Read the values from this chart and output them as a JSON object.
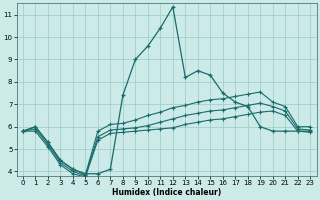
{
  "xlabel": "Humidex (Indice chaleur)",
  "bg_color": "#cceae8",
  "grid_color": "#99cccc",
  "line_color": "#1a6b6b",
  "xlim": [
    -0.5,
    23.5
  ],
  "ylim": [
    3.8,
    11.5
  ],
  "xticks": [
    0,
    1,
    2,
    3,
    4,
    5,
    6,
    7,
    8,
    9,
    10,
    11,
    12,
    13,
    14,
    15,
    16,
    17,
    18,
    19,
    20,
    21,
    22,
    23
  ],
  "yticks": [
    4,
    5,
    6,
    7,
    8,
    9,
    10,
    11
  ],
  "s1_x": [
    0,
    1,
    2,
    3,
    4,
    5,
    6,
    7,
    8,
    9,
    10,
    11,
    12,
    13,
    14,
    15,
    16,
    17,
    18,
    19,
    20,
    21,
    22,
    23
  ],
  "s1_y": [
    5.8,
    6.0,
    5.3,
    4.5,
    4.1,
    3.9,
    3.9,
    4.1,
    7.4,
    9.0,
    9.6,
    10.4,
    11.35,
    8.2,
    8.5,
    8.3,
    7.5,
    7.1,
    6.9,
    6.0,
    5.8,
    5.8,
    5.8,
    5.8
  ],
  "s2_x": [
    0,
    1,
    2,
    3,
    4,
    5,
    6,
    7,
    8,
    9,
    10,
    11,
    12,
    13,
    14,
    15,
    16,
    17,
    18,
    19,
    20,
    21,
    22,
    23
  ],
  "s2_y": [
    5.8,
    6.0,
    5.3,
    4.5,
    4.1,
    3.85,
    5.8,
    6.1,
    6.15,
    6.3,
    6.5,
    6.65,
    6.85,
    6.95,
    7.1,
    7.2,
    7.25,
    7.35,
    7.45,
    7.55,
    7.1,
    6.9,
    6.0,
    6.0
  ],
  "s3_x": [
    0,
    1,
    2,
    3,
    4,
    5,
    6,
    7,
    8,
    9,
    10,
    11,
    12,
    13,
    14,
    15,
    16,
    17,
    18,
    19,
    20,
    21,
    22,
    23
  ],
  "s3_y": [
    5.8,
    5.9,
    5.2,
    4.4,
    4.0,
    3.8,
    5.55,
    5.85,
    5.9,
    5.95,
    6.05,
    6.2,
    6.35,
    6.5,
    6.6,
    6.7,
    6.75,
    6.85,
    6.95,
    7.05,
    6.9,
    6.7,
    5.9,
    5.85
  ],
  "s4_x": [
    0,
    1,
    2,
    3,
    4,
    5,
    6,
    7,
    8,
    9,
    10,
    11,
    12,
    13,
    14,
    15,
    16,
    17,
    18,
    19,
    20,
    21,
    22,
    23
  ],
  "s4_y": [
    5.8,
    5.8,
    5.1,
    4.3,
    3.9,
    3.75,
    5.4,
    5.7,
    5.75,
    5.8,
    5.85,
    5.9,
    5.95,
    6.1,
    6.2,
    6.3,
    6.35,
    6.45,
    6.55,
    6.65,
    6.7,
    6.5,
    5.8,
    5.75
  ]
}
